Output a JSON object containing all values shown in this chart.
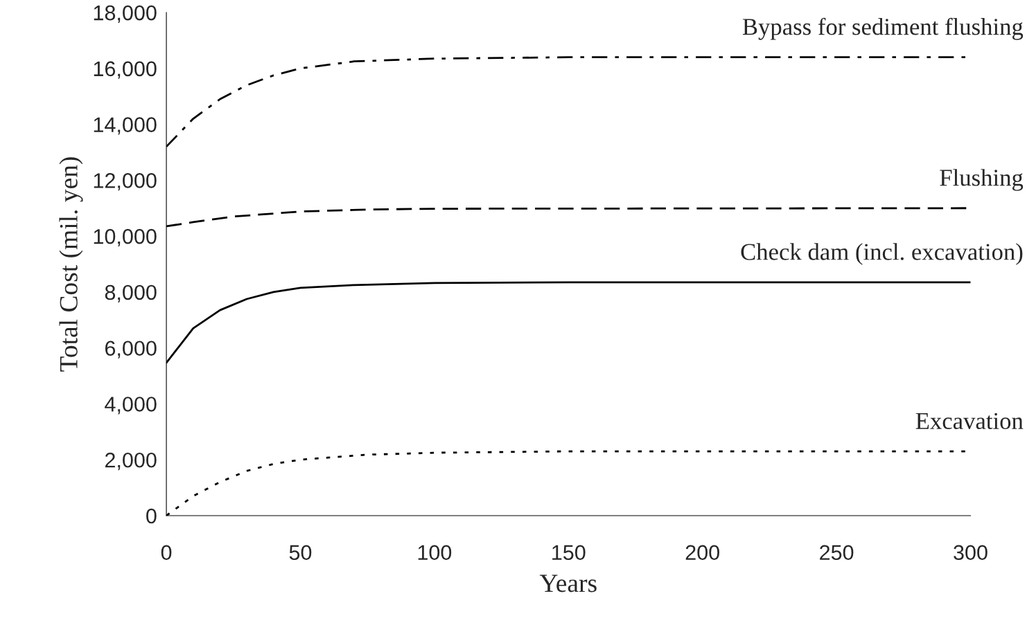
{
  "chart_data": {
    "type": "line",
    "xlabel": "Years",
    "ylabel": "Total Cost (mil. yen)",
    "xlim": [
      0,
      300
    ],
    "xticks": [
      0,
      50,
      100,
      150,
      200,
      250,
      300
    ],
    "ylim": [
      0,
      18000
    ],
    "yticks": [
      {
        "value": 0,
        "label": "0"
      },
      {
        "value": 2000,
        "label": "2,000"
      },
      {
        "value": 4000,
        "label": "4,000"
      },
      {
        "value": 6000,
        "label": "6,000"
      },
      {
        "value": 8000,
        "label": "8,000"
      },
      {
        "value": 10000,
        "label": "10,000"
      },
      {
        "value": 12000,
        "label": "12,000"
      },
      {
        "value": 14000,
        "label": "14,000"
      },
      {
        "value": 16000,
        "label": "16,000"
      },
      {
        "value": 18000,
        "label": "18,000"
      }
    ],
    "grid": false,
    "legend": false,
    "series": [
      {
        "name": "Bypass for sediment flushing",
        "color": "#000000",
        "line_style": "dashdot",
        "x": [
          0,
          10,
          20,
          30,
          40,
          50,
          70,
          100,
          150,
          300
        ],
        "values": [
          13200,
          14200,
          14900,
          15400,
          15750,
          16000,
          16250,
          16350,
          16400,
          16400
        ]
      },
      {
        "name": "Flushing",
        "color": "#000000",
        "line_style": "dashed",
        "x": [
          0,
          10,
          25,
          50,
          75,
          100,
          300
        ],
        "values": [
          10350,
          10500,
          10700,
          10880,
          10950,
          10980,
          11000
        ]
      },
      {
        "name": "Check dam (incl. excavation)",
        "color": "#000000",
        "line_style": "solid",
        "x": [
          0,
          10,
          20,
          30,
          40,
          50,
          70,
          100,
          150,
          300
        ],
        "values": [
          5470,
          6700,
          7350,
          7750,
          8000,
          8150,
          8250,
          8320,
          8350,
          8350
        ]
      },
      {
        "name": "Excavation",
        "color": "#000000",
        "line_style": "dotted",
        "x": [
          0,
          10,
          20,
          30,
          40,
          50,
          75,
          100,
          150,
          300
        ],
        "values": [
          0,
          700,
          1200,
          1600,
          1850,
          2000,
          2180,
          2250,
          2300,
          2300
        ]
      }
    ]
  }
}
